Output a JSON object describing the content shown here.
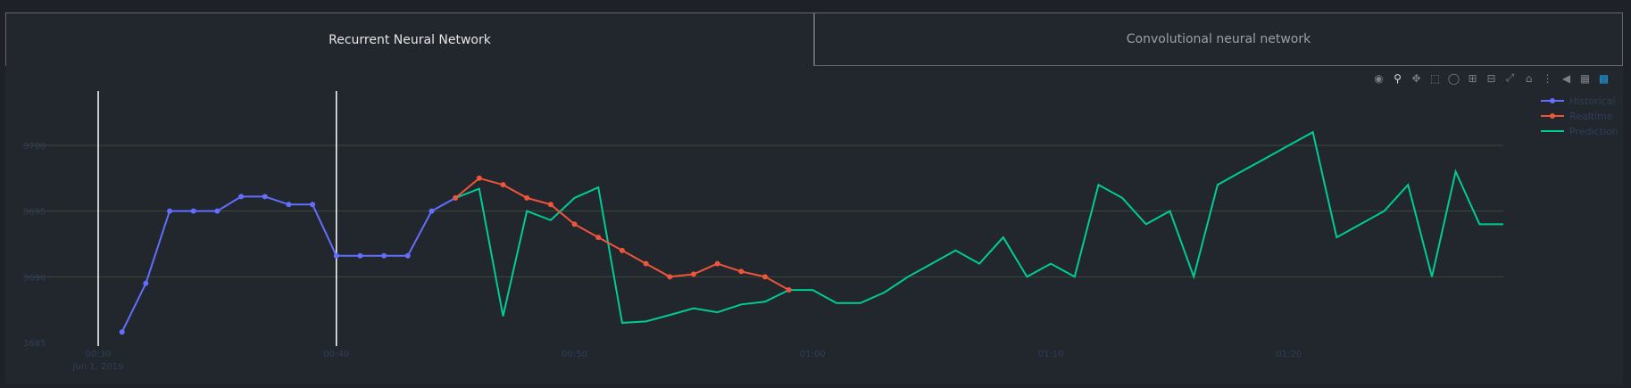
{
  "tabs": [
    {
      "label": "Recurrent Neural Network",
      "active": true
    },
    {
      "label": "Convolutional neural network",
      "active": false
    }
  ],
  "modebar": [
    "camera-icon",
    "zoom-icon",
    "pan-icon",
    "box-select-icon",
    "lasso-icon",
    "zoom-in-icon",
    "zoom-out-icon",
    "autoscale-icon",
    "home-icon",
    "spike-lines-icon",
    "hover-closest-icon",
    "hover-compare-icon",
    "plotly-logo-icon"
  ],
  "colors": {
    "historical": "#636efa",
    "realtime": "#ef553b",
    "prediction": "#00cc96",
    "grid": "#3d4a3a",
    "tick": "#2e3f5a",
    "vline": "#ffffff"
  },
  "chart_data": {
    "type": "line",
    "title": "",
    "xlabel": "",
    "ylabel": "",
    "x_unit": "minutes from 00:30",
    "xlim": [
      0,
      118
    ],
    "ylim": [
      3685,
      3704
    ],
    "yticks": [
      3685,
      3690,
      3695,
      3700
    ],
    "ytick_labels": [
      "3685",
      "3690",
      "3695",
      "3700"
    ],
    "xticks": [
      0,
      20,
      40,
      60,
      80,
      100
    ],
    "xtick_labels": [
      "00:30",
      "00:40",
      "00:50",
      "01:00",
      "01:10",
      "01:20"
    ],
    "xtick_sublabel": "Jun 1, 2019",
    "vlines": [
      0,
      20
    ],
    "legend_position": "top-right",
    "series": [
      {
        "name": "Historical",
        "key": "historical",
        "markers": true,
        "x": [
          2,
          4,
          6,
          8,
          10,
          12,
          14,
          16,
          18,
          20,
          22,
          24,
          26,
          28,
          30
        ],
        "y": [
          3685.8,
          3689.5,
          3695,
          3695,
          3695,
          3696.1,
          3696.1,
          3695.5,
          3695.5,
          3691.6,
          3691.6,
          3691.6,
          3691.6,
          3695,
          3696
        ],
        "x_start": 2
      },
      {
        "name": "Realtime",
        "key": "realtime",
        "markers": true,
        "x": [
          30,
          32,
          34,
          36,
          38,
          40,
          42,
          44,
          46,
          48,
          50,
          52,
          54,
          56,
          58
        ],
        "y": [
          3696,
          3697.5,
          3697,
          3696,
          3695.5,
          3694,
          3693,
          3692,
          3691,
          3690,
          3690.2,
          3691,
          3690.4,
          3690,
          3689
        ],
        "x_start": 30
      },
      {
        "name": "Prediction",
        "key": "prediction",
        "markers": false,
        "x": [
          30,
          32,
          34,
          36,
          38,
          40,
          42,
          44,
          46,
          48,
          50,
          52,
          54,
          56,
          58,
          60,
          62,
          64,
          66,
          68,
          70,
          72,
          74,
          76,
          78,
          80,
          82,
          84,
          86,
          88,
          90,
          92,
          94,
          96,
          98,
          100,
          102,
          104,
          106,
          108,
          110,
          112,
          114,
          116,
          118
        ],
        "y": [
          3696,
          3696.7,
          3687,
          3695,
          3694.3,
          3696,
          3696.8,
          3686.5,
          3686.6,
          3687.1,
          3687.6,
          3687.3,
          3687.9,
          3688.1,
          3689,
          3689,
          3688,
          3688,
          3688.8,
          3690,
          3691,
          3692,
          3691,
          3693,
          3690,
          3691,
          3690,
          3697,
          3696,
          3694,
          3695,
          3690,
          3697,
          3698,
          3699,
          3700,
          3701,
          3693,
          3694,
          3695,
          3697,
          3690,
          3698,
          3694,
          3694
        ]
      }
    ]
  }
}
